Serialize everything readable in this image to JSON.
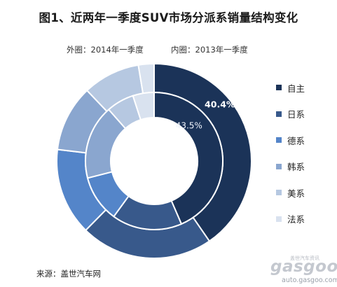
{
  "source_label": "来源：盖世汽车网",
  "watermark": {
    "logo_text": "gasgoo",
    "tagline": "盖世汽车资讯",
    "url": "auto.gasgoo.com"
  },
  "chart_data": {
    "type": "pie",
    "title": "图1、近两年一季度SUV市场分派系销量结构变化",
    "categories": [
      "自主",
      "日系",
      "德系",
      "韩系",
      "美系",
      "法系"
    ],
    "colors": [
      "#1b3358",
      "#38598b",
      "#5485c9",
      "#8aa6cf",
      "#b6c8e1",
      "#d9e2ef"
    ],
    "series": [
      {
        "name": "外圈：2014年一季度",
        "ring": "outer",
        "values": [
          40.4,
          22.0,
          14.5,
          11.0,
          9.5,
          2.6
        ]
      },
      {
        "name": "内圈：2013年一季度",
        "ring": "inner",
        "values": [
          43.5,
          16.5,
          11.0,
          17.5,
          6.5,
          5.0
        ]
      }
    ],
    "data_labels": [
      {
        "series": 0,
        "category": "自主",
        "text": "40.4%"
      },
      {
        "series": 1,
        "category": "自主",
        "text": "43.5%"
      }
    ],
    "legend_position": "right",
    "start_angle_deg": 0,
    "direction": "clockwise"
  }
}
